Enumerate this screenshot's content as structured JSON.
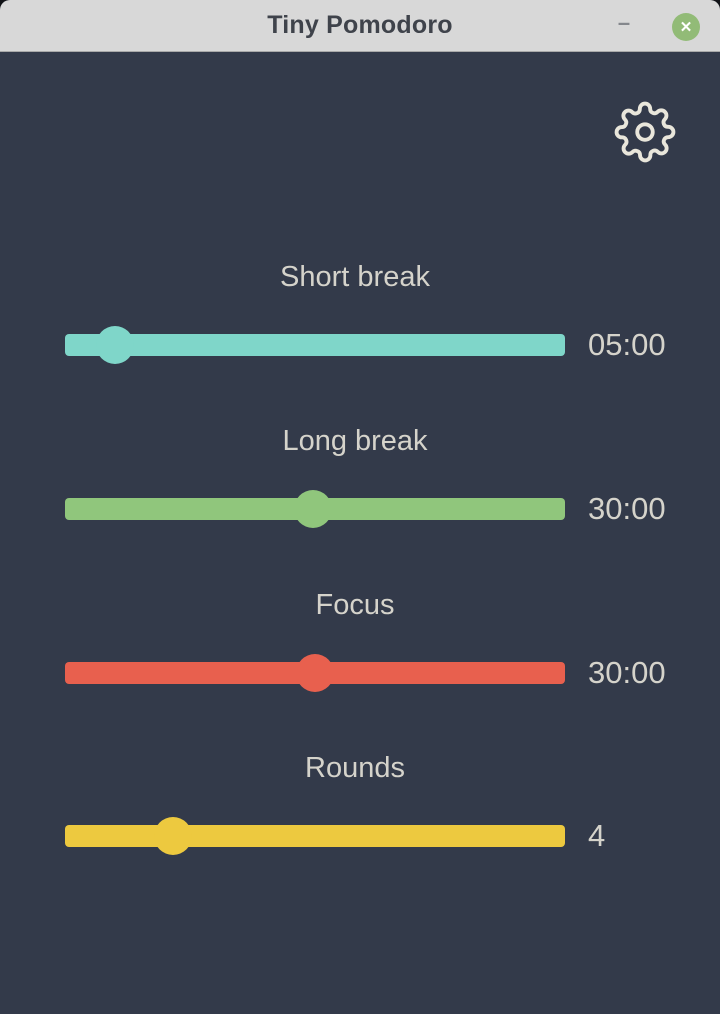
{
  "window": {
    "title": "Tiny Pomodoro"
  },
  "titlebar": {
    "minimize_glyph": "–",
    "close_glyph": "✕"
  },
  "colors": {
    "background": "#333a4a",
    "titlebar_bg": "#d8d8d8",
    "title_text": "#3f434b",
    "close_button_bg": "#92bb77",
    "label_text": "#d5d3cb",
    "gear_outline": "#e9e6db",
    "accent_teal": "#7fd6c9",
    "accent_green": "#90c67c",
    "accent_red": "#e8604e",
    "accent_yellow": "#edc93f"
  },
  "sliders": [
    {
      "id": "short-break",
      "label": "Short break",
      "value": "05:00",
      "color": "#7fd6c9",
      "thumb_percent": 9.9
    },
    {
      "id": "long-break",
      "label": "Long break",
      "value": "30:00",
      "color": "#90c67c",
      "thumb_percent": 49.6
    },
    {
      "id": "focus",
      "label": "Focus",
      "value": "30:00",
      "color": "#e8604e",
      "thumb_percent": 50
    },
    {
      "id": "rounds",
      "label": "Rounds",
      "value": "4",
      "color": "#edc93f",
      "thumb_percent": 21.6
    }
  ]
}
